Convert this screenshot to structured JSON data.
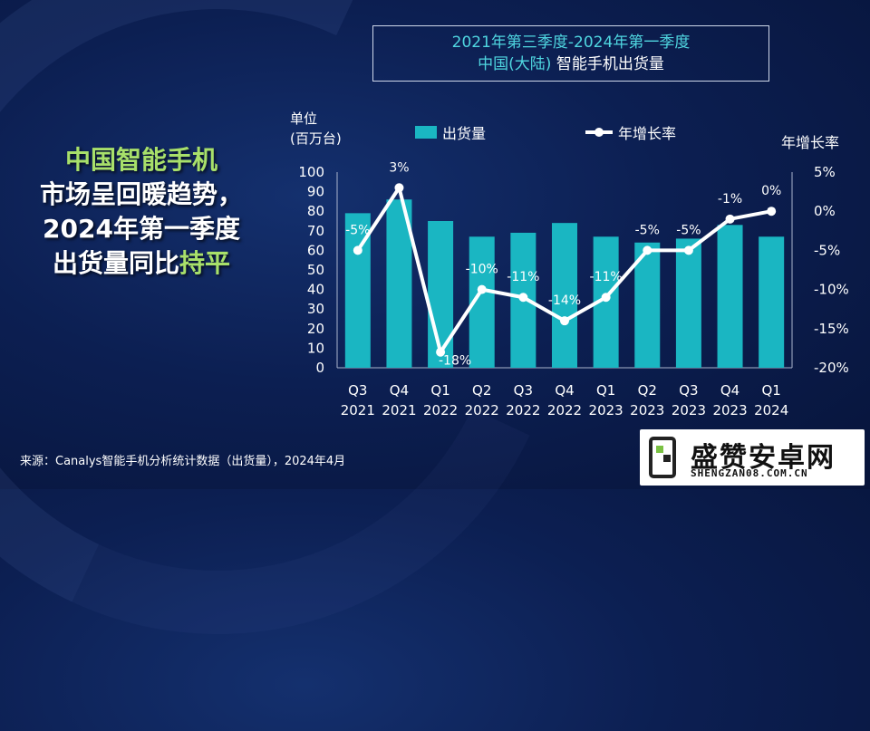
{
  "title": {
    "line1": "2021年第三季度-2024年第一季度",
    "line2_region": "中国(大陆)",
    "line2_subject": "智能手机出货量"
  },
  "headline": {
    "part1": "中国智能手机",
    "part2": "市场呈回暖趋势，",
    "part3": "2024年第一季度",
    "part4": "出货量同比",
    "part5": "持平"
  },
  "unit_line1": "单位",
  "unit_line2": "(百万台)",
  "source": "来源：Canalys智能手机分析统计数据（出货量），2024年4月",
  "logo": {
    "name": "盛赞安卓网",
    "url": "SHENGZAN08.COM.CN"
  },
  "colors": {
    "bar": "#1ab6c2",
    "line": "#ffffff",
    "title": "#4fd6e0",
    "headline_green": "#a8e06a"
  },
  "chart_data": {
    "type": "bar",
    "categories": [
      [
        "Q3",
        "2021"
      ],
      [
        "Q4",
        "2021"
      ],
      [
        "Q1",
        "2022"
      ],
      [
        "Q2",
        "2022"
      ],
      [
        "Q3",
        "2022"
      ],
      [
        "Q4",
        "2022"
      ],
      [
        "Q1",
        "2023"
      ],
      [
        "Q2",
        "2023"
      ],
      [
        "Q3",
        "2023"
      ],
      [
        "Q4",
        "2023"
      ],
      [
        "Q1",
        "2024"
      ]
    ],
    "series": [
      {
        "name": "出货量",
        "type": "bar",
        "axis": "left",
        "values": [
          79,
          86,
          75,
          67,
          69,
          74,
          67,
          64,
          66,
          73,
          67
        ]
      },
      {
        "name": "年增长率",
        "type": "line",
        "axis": "right",
        "values": [
          -5,
          3,
          -18,
          -10,
          -11,
          -14,
          -11,
          -5,
          -5,
          -1,
          0
        ],
        "labels": [
          "-5%",
          "3%",
          "-18%",
          "-10%",
          "-11%",
          "-14%",
          "-11%",
          "-5%",
          "-5%",
          "-1%",
          "0%"
        ]
      }
    ],
    "ylim": [
      0,
      100
    ],
    "yticks": [
      0,
      10,
      20,
      30,
      40,
      50,
      60,
      70,
      80,
      90,
      100
    ],
    "y2lim": [
      -20,
      5
    ],
    "y2ticks": [
      "5%",
      "0%",
      "-5%",
      "-10%",
      "-15%",
      "-20%"
    ],
    "y2label": "年增长率",
    "legend_position": "top"
  }
}
